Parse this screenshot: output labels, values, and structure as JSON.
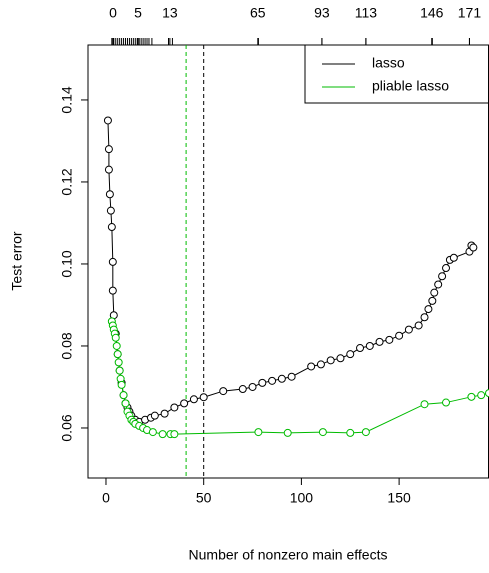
{
  "chart_data": {
    "type": "line",
    "xlabel": "Number of nonzero main effects",
    "ylabel": "Test error",
    "xlim": [
      -9.2,
      196
    ],
    "ylim": [
      0.0478,
      0.1534
    ],
    "xticks": [
      0,
      50,
      100,
      150
    ],
    "yticks": [
      0.06,
      0.08,
      {
        "value": 0.1,
        "label": "0.10"
      },
      0.12,
      0.14
    ],
    "x2ticks": [
      {
        "value": 3.6,
        "label": "0"
      },
      {
        "value": 16.4,
        "label": "5"
      },
      {
        "value": 32.7,
        "label": "13"
      },
      {
        "value": 77.7,
        "label": "65"
      },
      {
        "value": 110.5,
        "label": "93"
      },
      {
        "value": 133,
        "label": "113"
      },
      {
        "value": 166.7,
        "label": "146"
      },
      {
        "value": 186,
        "label": "171"
      }
    ],
    "x2rug": [
      3,
      4,
      5,
      6,
      7,
      8,
      9,
      10,
      11,
      12,
      13,
      14,
      15,
      16,
      17,
      18,
      19,
      20,
      21,
      22,
      23.5,
      32,
      34,
      78,
      110.5,
      133,
      167,
      186
    ],
    "vlines": [
      {
        "x": 41,
        "color": "#00bb00"
      },
      {
        "x": 50,
        "color": "#000000"
      }
    ],
    "legend": "top-right",
    "series": [
      {
        "name": "lasso",
        "color": "#000000",
        "x": [
          1,
          1.5,
          1.5,
          2,
          2.5,
          3,
          3.5,
          3.5,
          4,
          5,
          6,
          7,
          8,
          9,
          10,
          11,
          12,
          13,
          15,
          17,
          20,
          23,
          25,
          30,
          35,
          40,
          45,
          50,
          60,
          70,
          75,
          80,
          85,
          90,
          95,
          105,
          110,
          115,
          120,
          125,
          130,
          135,
          140,
          145,
          150,
          155,
          160,
          163,
          165,
          167,
          168,
          170,
          172,
          174,
          176,
          178,
          186,
          187,
          188
        ],
        "values": [
          0.135,
          0.128,
          0.123,
          0.117,
          0.113,
          0.109,
          0.1005,
          0.0935,
          0.0875,
          0.083,
          0.078,
          0.074,
          0.071,
          0.068,
          0.066,
          0.065,
          0.064,
          0.063,
          0.062,
          0.0615,
          0.062,
          0.0625,
          0.063,
          0.0635,
          0.065,
          0.066,
          0.067,
          0.0675,
          0.069,
          0.0695,
          0.07,
          0.071,
          0.0715,
          0.072,
          0.0725,
          0.075,
          0.0755,
          0.0765,
          0.077,
          0.078,
          0.0795,
          0.08,
          0.081,
          0.0815,
          0.0825,
          0.084,
          0.085,
          0.087,
          0.089,
          0.091,
          0.093,
          0.095,
          0.097,
          0.099,
          0.101,
          0.1015,
          0.103,
          0.1045,
          0.104
        ]
      },
      {
        "name": "pliable lasso",
        "color": "#00bb00",
        "x": [
          3,
          3.5,
          4,
          4.5,
          5,
          5.5,
          6,
          6.5,
          7,
          7.5,
          8,
          9,
          10,
          11,
          12,
          13,
          14,
          15,
          17,
          19,
          21,
          24,
          29,
          33,
          35,
          78,
          93,
          111,
          125,
          133,
          163,
          174,
          187,
          192,
          196
        ],
        "values": [
          0.086,
          0.085,
          0.084,
          0.083,
          0.082,
          0.08,
          0.078,
          0.076,
          0.074,
          0.072,
          0.0705,
          0.068,
          0.066,
          0.064,
          0.063,
          0.062,
          0.0615,
          0.061,
          0.0605,
          0.06,
          0.0595,
          0.059,
          0.0585,
          0.0585,
          0.0585,
          0.059,
          0.0588,
          0.059,
          0.0588,
          0.059,
          0.0658,
          0.0662,
          0.0676,
          0.068,
          0.0685
        ]
      }
    ]
  }
}
